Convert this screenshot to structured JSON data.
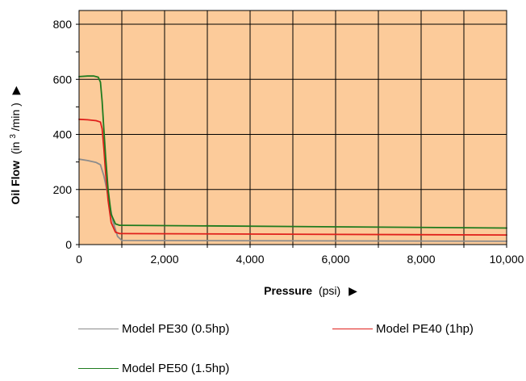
{
  "chart_data": {
    "type": "line",
    "title": "",
    "xlabel": {
      "bold": "Pressure",
      "unit": "(psi)",
      "arrow": "▶"
    },
    "ylabel": {
      "bold": "Oil Flow",
      "unit_pre": "(in",
      "unit_sup": "3",
      "unit_post": "/min )",
      "arrow": "▶"
    },
    "xlim": [
      0,
      10000
    ],
    "ylim": [
      0,
      850
    ],
    "xticks": [
      0,
      2000,
      4000,
      6000,
      8000,
      10000
    ],
    "xtick_labels": [
      "0",
      "2,000",
      "4,000",
      "6,000",
      "8,000",
      "10,000"
    ],
    "yticks": [
      0,
      200,
      400,
      600,
      800
    ],
    "ytick_labels": [
      "0",
      "200",
      "400",
      "600",
      "800"
    ],
    "grid": true,
    "plot_background": "#FCCB9A",
    "legend_position": "bottom",
    "series": [
      {
        "name": "Model PE30 (0.5hp)",
        "color": "#8C8C8C",
        "x": [
          0,
          200,
          400,
          500,
          580,
          650,
          720,
          800,
          900,
          1000,
          10000
        ],
        "y": [
          310,
          305,
          298,
          290,
          250,
          200,
          140,
          80,
          30,
          15,
          12
        ]
      },
      {
        "name": "Model PE40 (1hp)",
        "color": "#E0201B",
        "x": [
          0,
          200,
          400,
          500,
          540,
          580,
          620,
          680,
          750,
          850,
          950,
          1000,
          10000
        ],
        "y": [
          455,
          453,
          450,
          445,
          420,
          350,
          260,
          160,
          80,
          45,
          40,
          40,
          35
        ]
      },
      {
        "name": "Model PE50 (1.5hp)",
        "color": "#1E7B1E",
        "x": [
          0,
          200,
          350,
          450,
          500,
          540,
          580,
          620,
          680,
          750,
          850,
          950,
          1000,
          10000
        ],
        "y": [
          610,
          612,
          612,
          608,
          590,
          520,
          420,
          320,
          200,
          110,
          75,
          70,
          70,
          60
        ]
      }
    ]
  }
}
